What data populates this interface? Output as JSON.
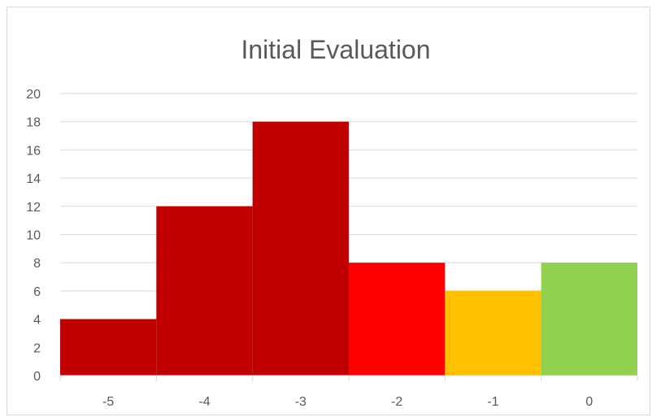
{
  "chart_data": {
    "type": "bar",
    "title": "Initial Evaluation",
    "categories": [
      "-5",
      "-4",
      "-3",
      "-2",
      "-1",
      "0"
    ],
    "values": [
      4,
      12,
      18,
      8,
      6,
      8
    ],
    "bar_colors": [
      "#C00000",
      "#C00000",
      "#C00000",
      "#FF0000",
      "#FFC000",
      "#92D050"
    ],
    "ylim": [
      0,
      20
    ],
    "yticks": [
      0,
      2,
      4,
      6,
      8,
      10,
      12,
      14,
      16,
      18,
      20
    ],
    "grid": true,
    "xlabel": "",
    "ylabel": ""
  }
}
